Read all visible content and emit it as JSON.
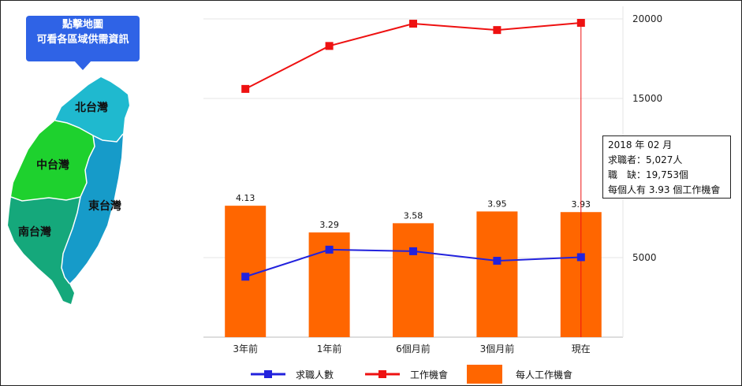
{
  "map": {
    "callout": {
      "line1": "點擊地圖",
      "line2": "可看各區域供需資訊"
    },
    "regions": {
      "north": {
        "label": "北台灣",
        "color": "#1fb9cf"
      },
      "central": {
        "label": "中台灣",
        "color": "#1ed12e"
      },
      "south": {
        "label": "南台灣",
        "color": "#15a87b"
      },
      "east": {
        "label": "東台灣",
        "color": "#169bc9"
      }
    }
  },
  "tooltip": {
    "date": "2018 年 02 月",
    "seekers": "求職者：5,027人",
    "vacancies": "職　缺：19,753個",
    "ratio": "每個人有 3.93 個工作機會"
  },
  "chart_data": {
    "type": "bar",
    "categories": [
      "3年前",
      "1年前",
      "6個月前",
      "3個月前",
      "現在"
    ],
    "y_ticks": [
      "20000",
      "15000",
      "5000"
    ],
    "ylim": [
      0,
      20000
    ],
    "series": [
      {
        "name": "每人工作機會",
        "type": "bar",
        "values": [
          4.13,
          3.29,
          3.58,
          3.95,
          3.93
        ],
        "labels": [
          "4.13",
          "3.29",
          "3.58",
          "3.95",
          "3.93"
        ],
        "color": "#ff6600"
      },
      {
        "name": "求職人數",
        "type": "line",
        "values": [
          3800,
          5500,
          5400,
          4800,
          5027
        ],
        "color": "#2222dd"
      },
      {
        "name": "工作機會",
        "type": "line",
        "values": [
          15600,
          18300,
          19700,
          19300,
          19753
        ],
        "color": "#ee1111"
      }
    ],
    "legend": [
      "求職人數",
      "工作機會",
      "每人工作機會"
    ],
    "legend_position": "bottom",
    "grid": true,
    "highlight": {
      "category": "現在",
      "color": "#ee1111"
    }
  }
}
